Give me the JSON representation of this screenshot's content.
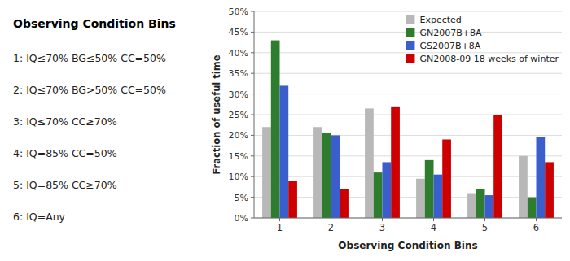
{
  "chart_data": {
    "type": "bar",
    "title": "Observing Condition Bins",
    "annotations": [
      "1: IQ≤70% BG≤50% CC=50%",
      "2: IQ≤70% BG>50% CC=50%",
      "3: IQ≤70% CC≥70%",
      "4: IQ=85% CC=50%",
      "5: IQ=85% CC≥70%",
      "6: IQ=Any"
    ],
    "xlabel": "Observing Condition Bins",
    "ylabel": "Fraction of useful time",
    "categories": [
      1,
      2,
      3,
      4,
      5,
      6
    ],
    "series": [
      {
        "name": "Expected",
        "color": "#b8b8b8",
        "values": [
          22,
          22,
          26.5,
          9.5,
          6,
          15
        ]
      },
      {
        "name": "GN2007B+8A",
        "color": "#2e7d2e",
        "values": [
          43,
          20.5,
          11,
          14,
          7,
          5
        ]
      },
      {
        "name": "GS2007B+8A",
        "color": "#3a5fcd",
        "values": [
          32,
          20,
          13.5,
          10.5,
          5.5,
          19.5
        ]
      },
      {
        "name": "GN2008-09 18 weeks of winter",
        "color": "#cc0000",
        "values": [
          9,
          7,
          27,
          19,
          25,
          13.5
        ]
      }
    ],
    "ylim": [
      0,
      50
    ],
    "yticks": [
      {
        "value": 0,
        "label": "0%"
      },
      {
        "value": 5,
        "label": "5%"
      },
      {
        "value": 10,
        "label": "10%"
      },
      {
        "value": 15,
        "label": "15%"
      },
      {
        "value": 20,
        "label": "20%"
      },
      {
        "value": 25,
        "label": "25%"
      },
      {
        "value": 30,
        "label": "30%"
      },
      {
        "value": 35,
        "label": "35%"
      },
      {
        "value": 40,
        "label": "40%"
      },
      {
        "value": 45,
        "label": "45%"
      },
      {
        "value": 50,
        "label": "50%"
      }
    ],
    "grid": true,
    "legend": "upper right"
  }
}
